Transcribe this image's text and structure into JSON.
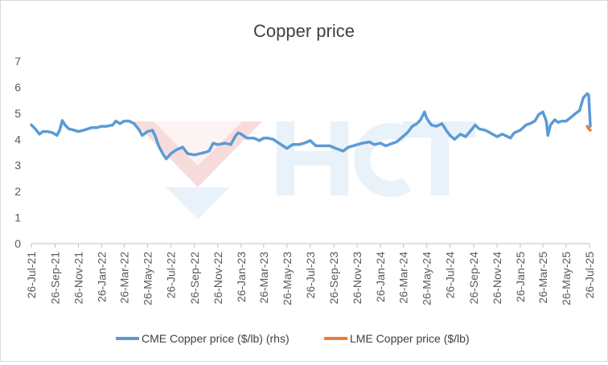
{
  "chart_data": {
    "type": "line",
    "title": "Copper price",
    "xlabel": "",
    "ylabel": "",
    "ylim": [
      0,
      7
    ],
    "yticks": [
      0,
      1,
      2,
      3,
      4,
      5,
      6,
      7
    ],
    "xlim": [
      "2021-07-26",
      "2025-07-26"
    ],
    "xticks": [
      {
        "date": "2021-07-26",
        "label": "26-Jul-21"
      },
      {
        "date": "2021-09-26",
        "label": "26-Sep-21"
      },
      {
        "date": "2021-11-26",
        "label": "26-Nov-21"
      },
      {
        "date": "2022-01-26",
        "label": "26-Jan-22"
      },
      {
        "date": "2022-03-26",
        "label": "26-Mar-22"
      },
      {
        "date": "2022-05-26",
        "label": "26-May-22"
      },
      {
        "date": "2022-07-26",
        "label": "26-Jul-22"
      },
      {
        "date": "2022-09-26",
        "label": "26-Sep-22"
      },
      {
        "date": "2022-11-26",
        "label": "26-Nov-22"
      },
      {
        "date": "2023-01-26",
        "label": "26-Jan-23"
      },
      {
        "date": "2023-03-26",
        "label": "26-Mar-23"
      },
      {
        "date": "2023-05-26",
        "label": "26-May-23"
      },
      {
        "date": "2023-07-26",
        "label": "26-Jul-23"
      },
      {
        "date": "2023-09-26",
        "label": "26-Sep-23"
      },
      {
        "date": "2023-11-26",
        "label": "26-Nov-23"
      },
      {
        "date": "2024-01-26",
        "label": "26-Jan-24"
      },
      {
        "date": "2024-03-26",
        "label": "26-Mar-24"
      },
      {
        "date": "2024-05-26",
        "label": "26-May-24"
      },
      {
        "date": "2024-07-26",
        "label": "26-Jul-24"
      },
      {
        "date": "2024-09-26",
        "label": "26-Sep-24"
      },
      {
        "date": "2024-11-26",
        "label": "26-Nov-24"
      },
      {
        "date": "2025-01-26",
        "label": "26-Jan-25"
      },
      {
        "date": "2025-03-26",
        "label": "26-Mar-25"
      },
      {
        "date": "2025-05-26",
        "label": "26-May-25"
      },
      {
        "date": "2025-07-26",
        "label": "26-Jul-25"
      }
    ],
    "grid": false,
    "legend_position": "bottom",
    "series": [
      {
        "name": "CME Copper price ($/lb) (rhs)",
        "color": "#5B9BD5",
        "points": [
          [
            "2021-07-26",
            4.55
          ],
          [
            "2021-08-05",
            4.4
          ],
          [
            "2021-08-16",
            4.2
          ],
          [
            "2021-08-25",
            4.3
          ],
          [
            "2021-09-06",
            4.3
          ],
          [
            "2021-09-20",
            4.25
          ],
          [
            "2021-10-01",
            4.15
          ],
          [
            "2021-10-08",
            4.35
          ],
          [
            "2021-10-15",
            4.72
          ],
          [
            "2021-10-22",
            4.55
          ],
          [
            "2021-11-01",
            4.4
          ],
          [
            "2021-11-15",
            4.35
          ],
          [
            "2021-11-26",
            4.3
          ],
          [
            "2021-12-10",
            4.35
          ],
          [
            "2021-12-31",
            4.45
          ],
          [
            "2022-01-14",
            4.45
          ],
          [
            "2022-01-26",
            4.5
          ],
          [
            "2022-02-08",
            4.5
          ],
          [
            "2022-02-24",
            4.55
          ],
          [
            "2022-03-04",
            4.7
          ],
          [
            "2022-03-15",
            4.6
          ],
          [
            "2022-03-26",
            4.7
          ],
          [
            "2022-04-08",
            4.7
          ],
          [
            "2022-04-21",
            4.6
          ],
          [
            "2022-05-05",
            4.35
          ],
          [
            "2022-05-12",
            4.15
          ],
          [
            "2022-05-26",
            4.3
          ],
          [
            "2022-06-08",
            4.35
          ],
          [
            "2022-06-16",
            4.1
          ],
          [
            "2022-06-24",
            3.75
          ],
          [
            "2022-07-05",
            3.45
          ],
          [
            "2022-07-14",
            3.25
          ],
          [
            "2022-07-26",
            3.45
          ],
          [
            "2022-08-10",
            3.6
          ],
          [
            "2022-08-26",
            3.7
          ],
          [
            "2022-09-08",
            3.45
          ],
          [
            "2022-09-26",
            3.4
          ],
          [
            "2022-10-10",
            3.45
          ],
          [
            "2022-10-24",
            3.5
          ],
          [
            "2022-11-03",
            3.55
          ],
          [
            "2022-11-14",
            3.85
          ],
          [
            "2022-11-26",
            3.8
          ],
          [
            "2022-12-15",
            3.85
          ],
          [
            "2022-12-30",
            3.8
          ],
          [
            "2023-01-10",
            4.1
          ],
          [
            "2023-01-18",
            4.25
          ],
          [
            "2023-01-26",
            4.2
          ],
          [
            "2023-02-10",
            4.05
          ],
          [
            "2023-02-28",
            4.05
          ],
          [
            "2023-03-15",
            3.95
          ],
          [
            "2023-03-26",
            4.05
          ],
          [
            "2023-04-06",
            4.05
          ],
          [
            "2023-04-20",
            4.0
          ],
          [
            "2023-05-05",
            3.85
          ],
          [
            "2023-05-26",
            3.65
          ],
          [
            "2023-06-10",
            3.8
          ],
          [
            "2023-06-26",
            3.8
          ],
          [
            "2023-07-10",
            3.85
          ],
          [
            "2023-07-26",
            3.95
          ],
          [
            "2023-08-10",
            3.75
          ],
          [
            "2023-08-28",
            3.75
          ],
          [
            "2023-09-15",
            3.75
          ],
          [
            "2023-10-01",
            3.65
          ],
          [
            "2023-10-20",
            3.55
          ],
          [
            "2023-11-03",
            3.7
          ],
          [
            "2023-11-15",
            3.75
          ],
          [
            "2023-11-26",
            3.8
          ],
          [
            "2023-12-10",
            3.85
          ],
          [
            "2023-12-28",
            3.9
          ],
          [
            "2024-01-10",
            3.8
          ],
          [
            "2024-01-26",
            3.85
          ],
          [
            "2024-02-09",
            3.75
          ],
          [
            "2024-02-27",
            3.85
          ],
          [
            "2024-03-08",
            3.9
          ],
          [
            "2024-03-20",
            4.05
          ],
          [
            "2024-04-05",
            4.25
          ],
          [
            "2024-04-18",
            4.5
          ],
          [
            "2024-04-30",
            4.6
          ],
          [
            "2024-05-10",
            4.75
          ],
          [
            "2024-05-20",
            5.05
          ],
          [
            "2024-05-26",
            4.8
          ],
          [
            "2024-06-07",
            4.55
          ],
          [
            "2024-06-20",
            4.5
          ],
          [
            "2024-07-05",
            4.6
          ],
          [
            "2024-07-18",
            4.3
          ],
          [
            "2024-07-26",
            4.15
          ],
          [
            "2024-08-07",
            4.0
          ],
          [
            "2024-08-22",
            4.2
          ],
          [
            "2024-09-05",
            4.1
          ],
          [
            "2024-09-16",
            4.3
          ],
          [
            "2024-09-30",
            4.55
          ],
          [
            "2024-10-10",
            4.4
          ],
          [
            "2024-10-26",
            4.35
          ],
          [
            "2024-11-08",
            4.25
          ],
          [
            "2024-11-26",
            4.1
          ],
          [
            "2024-12-10",
            4.2
          ],
          [
            "2024-12-31",
            4.05
          ],
          [
            "2025-01-10",
            4.25
          ],
          [
            "2025-01-26",
            4.35
          ],
          [
            "2025-02-10",
            4.55
          ],
          [
            "2025-02-20",
            4.6
          ],
          [
            "2025-03-05",
            4.7
          ],
          [
            "2025-03-15",
            4.95
          ],
          [
            "2025-03-26",
            5.05
          ],
          [
            "2025-04-04",
            4.7
          ],
          [
            "2025-04-08",
            4.15
          ],
          [
            "2025-04-15",
            4.55
          ],
          [
            "2025-04-26",
            4.75
          ],
          [
            "2025-05-05",
            4.65
          ],
          [
            "2025-05-15",
            4.7
          ],
          [
            "2025-05-26",
            4.7
          ],
          [
            "2025-06-08",
            4.85
          ],
          [
            "2025-06-20",
            5.0
          ],
          [
            "2025-06-30",
            5.1
          ],
          [
            "2025-07-10",
            5.6
          ],
          [
            "2025-07-20",
            5.75
          ],
          [
            "2025-07-24",
            5.7
          ],
          [
            "2025-07-28",
            4.5
          ]
        ]
      },
      {
        "name": "LME Copper price ($/lb)",
        "color": "#ED7D31",
        "points": [
          [
            "2025-07-20",
            4.5
          ],
          [
            "2025-07-24",
            4.4
          ],
          [
            "2025-07-28",
            4.35
          ]
        ]
      }
    ]
  }
}
